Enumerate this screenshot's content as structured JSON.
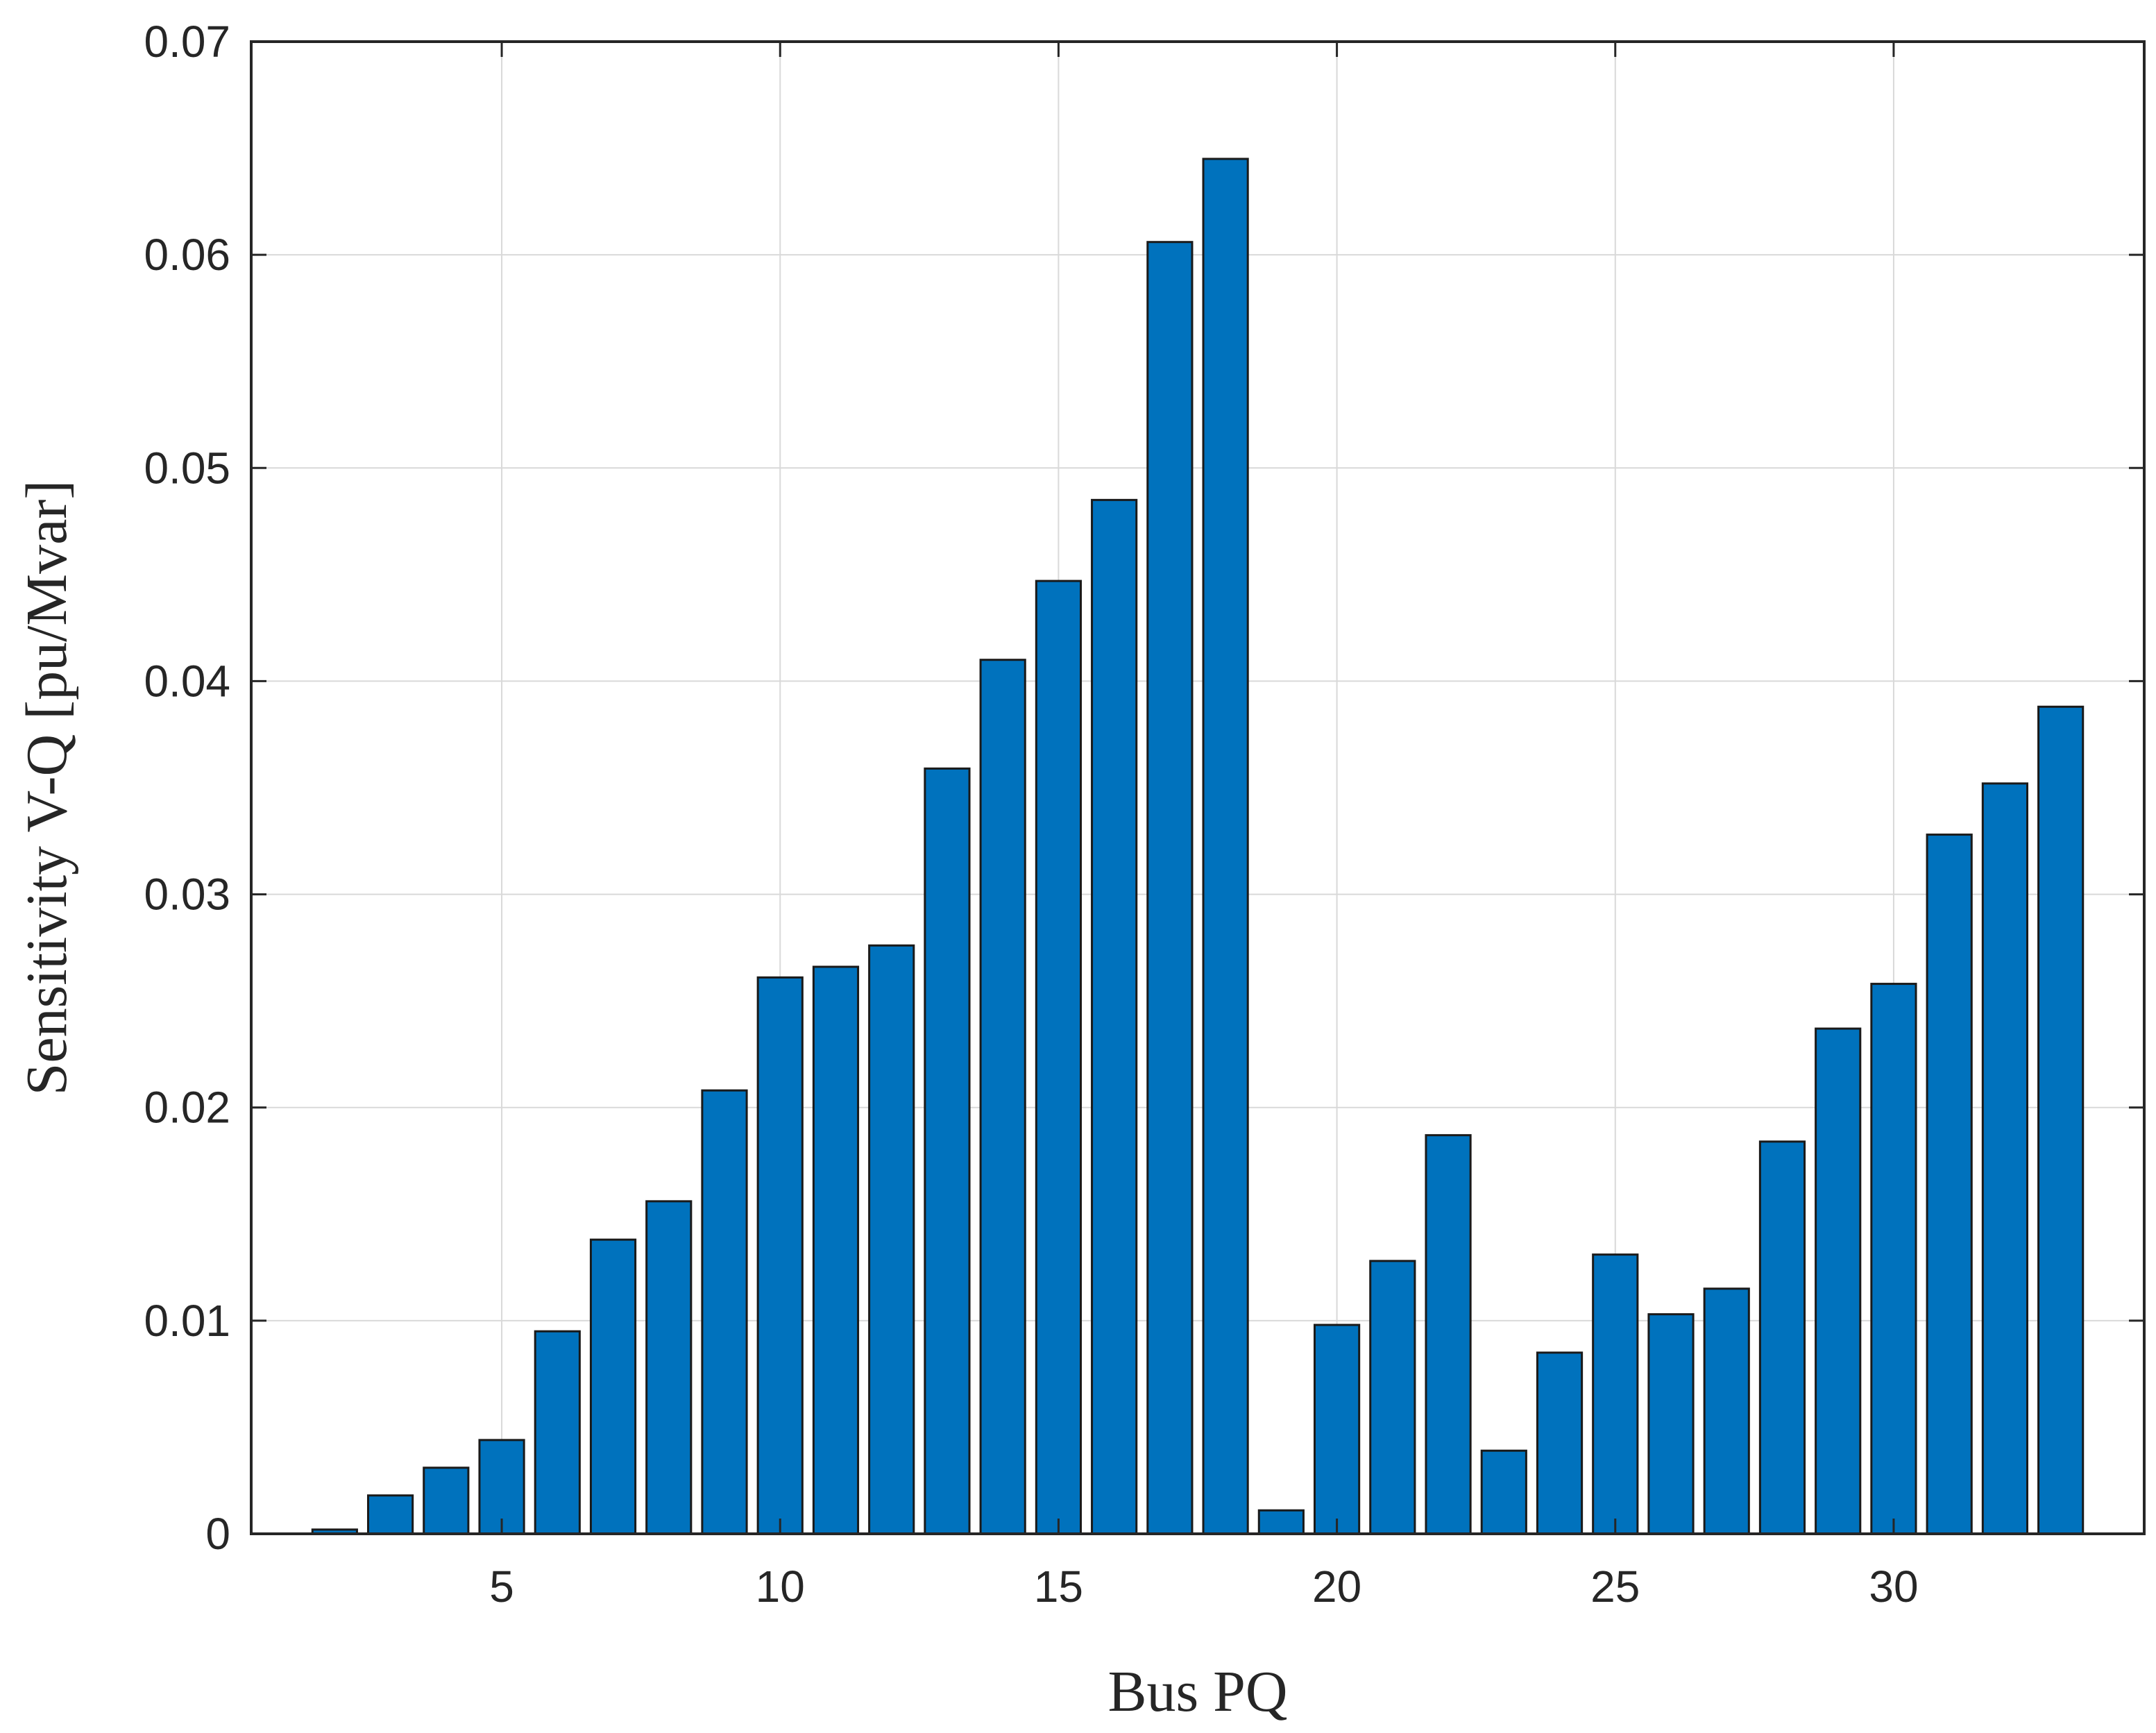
{
  "chart_data": {
    "type": "bar",
    "xlabel": "Bus PQ",
    "ylabel": "Sensitivity V-Q [pu/Mvar]",
    "x": [
      2,
      3,
      4,
      5,
      6,
      7,
      8,
      9,
      10,
      11,
      12,
      13,
      14,
      15,
      16,
      17,
      18,
      19,
      20,
      21,
      22,
      23,
      24,
      25,
      26,
      27,
      28,
      29,
      30,
      31,
      32,
      33
    ],
    "values": [
      0.0002,
      0.0018,
      0.0031,
      0.0044,
      0.0095,
      0.0138,
      0.0156,
      0.0208,
      0.0261,
      0.0266,
      0.0276,
      0.0359,
      0.041,
      0.0447,
      0.0485,
      0.0606,
      0.0645,
      0.0011,
      0.0098,
      0.0128,
      0.0187,
      0.0039,
      0.0085,
      0.0131,
      0.0103,
      0.0115,
      0.0184,
      0.0237,
      0.0258,
      0.0328,
      0.0352,
      0.0388
    ],
    "xlim": [
      0.5,
      34.5
    ],
    "ylim": [
      0,
      0.07
    ],
    "xticks": [
      5,
      10,
      15,
      20,
      25,
      30
    ],
    "yticks": [
      0,
      0.01,
      0.02,
      0.03,
      0.04,
      0.05,
      0.06,
      0.07
    ],
    "ytick_labels": [
      "0",
      "0.01",
      "0.02",
      "0.03",
      "0.04",
      "0.05",
      "0.06",
      "0.07"
    ],
    "grid": true,
    "colors": {
      "bar": "#0072BD",
      "edge": "#1a1a1a"
    }
  }
}
